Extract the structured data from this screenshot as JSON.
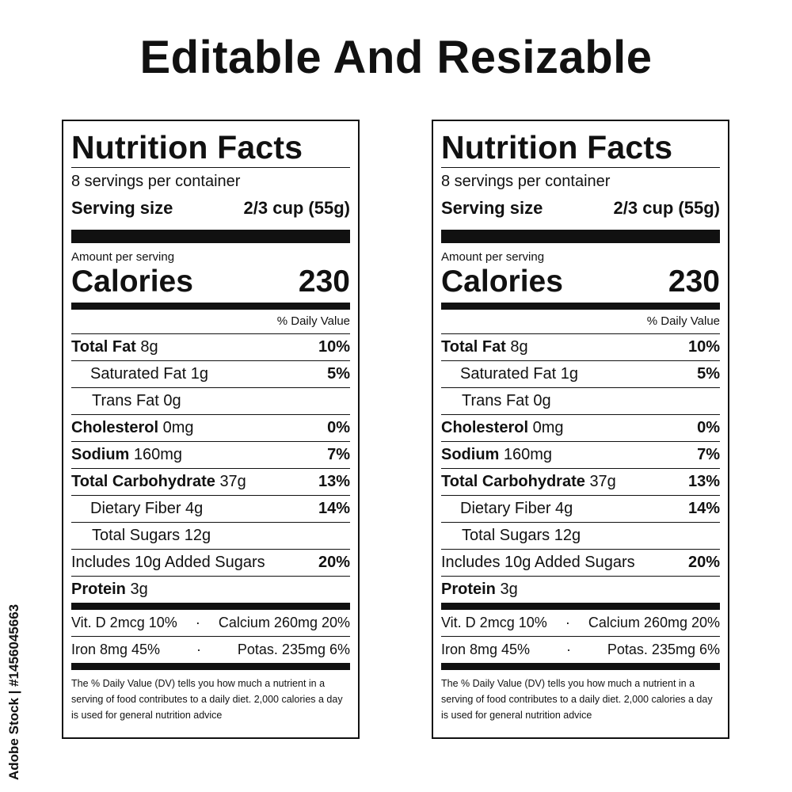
{
  "headline": "Editable And Resizable",
  "stock_credit": "Adobe Stock | #1456045663",
  "label": {
    "title": "Nutrition Facts",
    "servings_per_container": "8 servings per container",
    "serving_size_label": "Serving size",
    "serving_size_value": "2/3 cup (55g)",
    "amount_per_serving": "Amount per serving",
    "calories_label": "Calories",
    "calories_value": "230",
    "daily_value_header": "% Daily Value",
    "nutrients": [
      {
        "name": "Total Fat",
        "amount": "8g",
        "dv": "10%"
      },
      {
        "name": "Saturated Fat",
        "amount": "1g",
        "dv": "5%"
      },
      {
        "name": "Trans Fat",
        "amount": "0g",
        "dv": ""
      },
      {
        "name": "Cholesterol",
        "amount": "0mg",
        "dv": "0%"
      },
      {
        "name": "Sodium",
        "amount": "160mg",
        "dv": "7%"
      },
      {
        "name": "Total Carbohydrate",
        "amount": "37g",
        "dv": "13%"
      },
      {
        "name": "Dietary Fiber",
        "amount": "4g",
        "dv": "14%"
      },
      {
        "name": "Total Sugars",
        "amount": "12g",
        "dv": ""
      },
      {
        "name": "Includes 10g Added Sugars",
        "amount": "",
        "dv": "20%"
      },
      {
        "name": "Protein",
        "amount": "3g",
        "dv": ""
      }
    ],
    "vitamins_row1_left": "Vit. D 2mcg 10%",
    "vitamins_row1_sep": "·",
    "vitamins_row1_right": "Calcium 260mg 20%",
    "vitamins_row2_left": "Iron 8mg 45%",
    "vitamins_row2_sep": "·",
    "vitamins_row2_right": "Potas. 235mg 6%",
    "footnote": "The % Daily Value (DV) tells you how much a nutrient in a serving of food contributes to a daily diet. 2,000 calories a day is used for general nutrition advice"
  }
}
